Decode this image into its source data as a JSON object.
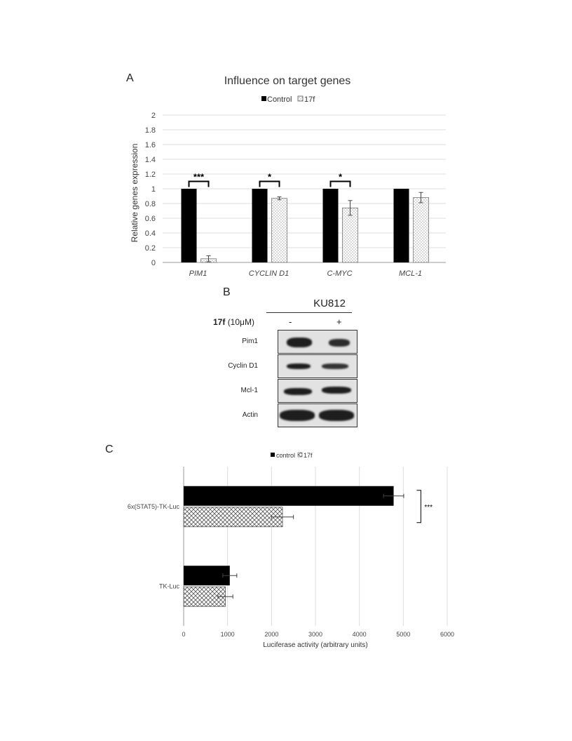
{
  "panel_a": {
    "label": "A",
    "chart_data": {
      "type": "bar",
      "title": "Influence on target genes",
      "ylabel": "Relative genes expression",
      "xlabel": "",
      "categories": [
        "PIM1",
        "CYCLIN D1",
        "C-MYC",
        "MCL-1"
      ],
      "series": [
        {
          "name": "Control",
          "values": [
            1,
            1,
            1,
            1
          ],
          "color": "#000000",
          "pattern": "solid"
        },
        {
          "name": "17f",
          "values": [
            0.05,
            0.87,
            0.74,
            0.88
          ],
          "errors": [
            0.04,
            0.02,
            0.1,
            0.07
          ],
          "color": "#ffffff",
          "pattern": "dotted"
        }
      ],
      "significance": [
        "***",
        "*",
        "*",
        ""
      ],
      "ylim": [
        0,
        2
      ],
      "yticks": [
        "0",
        "0.2",
        "0.4",
        "0.6",
        "0.8",
        "1",
        "1.2",
        "1.4",
        "1.6",
        "1.8",
        "2"
      ],
      "grid": true,
      "legend": "top"
    }
  },
  "panel_b": {
    "label": "B",
    "cell_line": "KU812",
    "treatment_compound": "17f",
    "treatment_dose": "(10μM)",
    "lanes": [
      "-",
      "+"
    ],
    "rows": [
      "Pim1",
      "Cyclin D1",
      "Mcl-1",
      "Actin"
    ]
  },
  "panel_c": {
    "label": "C",
    "chart_data": {
      "type": "bar",
      "orientation": "horizontal",
      "categories": [
        "6x(STAT5)-TK-Luc",
        "TK-Luc"
      ],
      "series": [
        {
          "name": "control",
          "values": [
            4780,
            1050
          ],
          "errors": [
            230,
            160
          ],
          "color": "#000000",
          "pattern": "solid"
        },
        {
          "name": "17f",
          "values": [
            2250,
            950
          ],
          "errors": [
            250,
            170
          ],
          "color": "#ffffff",
          "pattern": "crosshatch"
        }
      ],
      "significance": "***",
      "xlabel": "Luciferase activity (arbitrary units)",
      "ylabel": "",
      "xlim": [
        0,
        6000
      ],
      "xticks": [
        "0",
        "1000",
        "2000",
        "3000",
        "4000",
        "5000",
        "6000"
      ],
      "grid": true,
      "legend": "top"
    }
  }
}
